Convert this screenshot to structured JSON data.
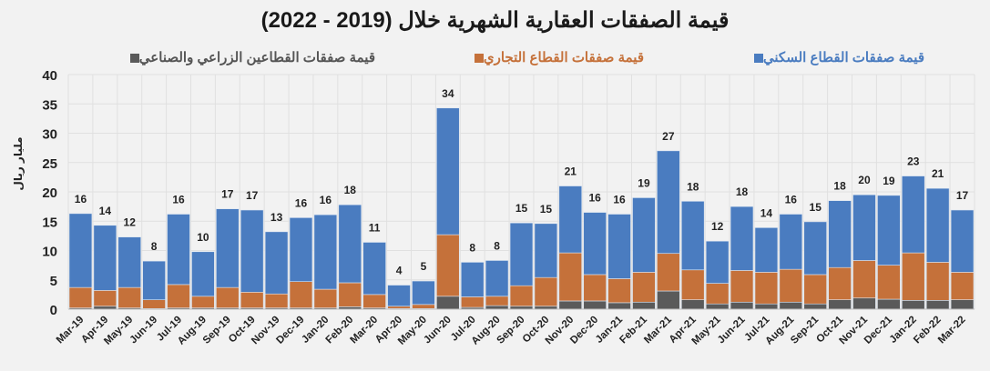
{
  "chart_data": {
    "type": "bar",
    "stacked": true,
    "title": "قيمة الصفقات العقارية الشهرية خلال (2019 - 2022)",
    "ylabel": "مليار ريال",
    "xlabel": "",
    "ylim": [
      0,
      40
    ],
    "yticks": [
      0,
      5,
      10,
      15,
      20,
      25,
      30,
      35,
      40
    ],
    "grid": true,
    "legend_position": "top",
    "categories": [
      "Mar-19",
      "Apr-19",
      "May-19",
      "Jun-19",
      "Jul-19",
      "Aug-19",
      "Sep-19",
      "Oct-19",
      "Nov-19",
      "Dec-19",
      "Jan-20",
      "Feb-20",
      "Mar-20",
      "Apr-20",
      "May-20",
      "Jun-20",
      "Jul-20",
      "Aug-20",
      "Sep-20",
      "Oct-20",
      "Nov-20",
      "Dec-20",
      "Jan-21",
      "Feb-21",
      "Mar-21",
      "Apr-21",
      "May-21",
      "Jun-21",
      "Jul-21",
      "Aug-21",
      "Sep-21",
      "Oct-21",
      "Nov-21",
      "Dec-21",
      "Jan-22",
      "Feb-22",
      "Mar-22"
    ],
    "series": [
      {
        "name": "قيمة صفقات القطاعين الزراعي والصناعي",
        "color": "#5a5a5a",
        "values": [
          0.2,
          0.5,
          0.2,
          0.1,
          0.2,
          0.2,
          0.2,
          0.2,
          0.2,
          0.2,
          0.2,
          0.4,
          0.2,
          0.1,
          0.1,
          2.2,
          0.3,
          0.6,
          0.5,
          0.5,
          1.4,
          1.4,
          1.1,
          1.2,
          3.1,
          1.6,
          0.9,
          1.2,
          0.9,
          1.2,
          0.9,
          1.6,
          1.9,
          1.7,
          1.5,
          1.5,
          1.6
        ]
      },
      {
        "name": "قيمة صفقات القطاع التجاري",
        "color": "#c5713a",
        "values": [
          3.5,
          2.7,
          3.5,
          1.5,
          4.0,
          2.0,
          3.5,
          2.7,
          2.4,
          4.5,
          3.2,
          4.1,
          2.3,
          0.4,
          0.7,
          10.5,
          1.8,
          1.6,
          3.5,
          4.9,
          8.2,
          4.5,
          4.1,
          5.1,
          6.4,
          5.1,
          3.5,
          5.4,
          5.4,
          5.6,
          5.0,
          5.5,
          6.4,
          5.8,
          8.1,
          6.5,
          4.7
        ]
      },
      {
        "name": "قيمة صفقات القطاع السكني",
        "color": "#4a7cc0",
        "values": [
          12.6,
          11.1,
          8.6,
          6.6,
          12.0,
          7.6,
          13.4,
          14.0,
          10.6,
          10.9,
          12.7,
          13.3,
          8.9,
          3.6,
          4.0,
          21.6,
          5.9,
          6.1,
          10.7,
          9.2,
          11.4,
          10.6,
          11.0,
          12.7,
          17.5,
          11.7,
          7.2,
          10.9,
          7.6,
          9.4,
          9.0,
          11.4,
          11.2,
          11.9,
          13.1,
          12.6,
          10.6
        ]
      }
    ],
    "data_labels": [
      "16",
      "14",
      "12",
      "8",
      "16",
      "10",
      "17",
      "17",
      "13",
      "16",
      "16",
      "18",
      "11",
      "4",
      "5",
      "34",
      "8",
      "8",
      "15",
      "15",
      "21",
      "16",
      "16",
      "19",
      "27",
      "18",
      "12",
      "18",
      "14",
      "16",
      "15",
      "18",
      "20",
      "19",
      "23",
      "21",
      "17"
    ]
  }
}
